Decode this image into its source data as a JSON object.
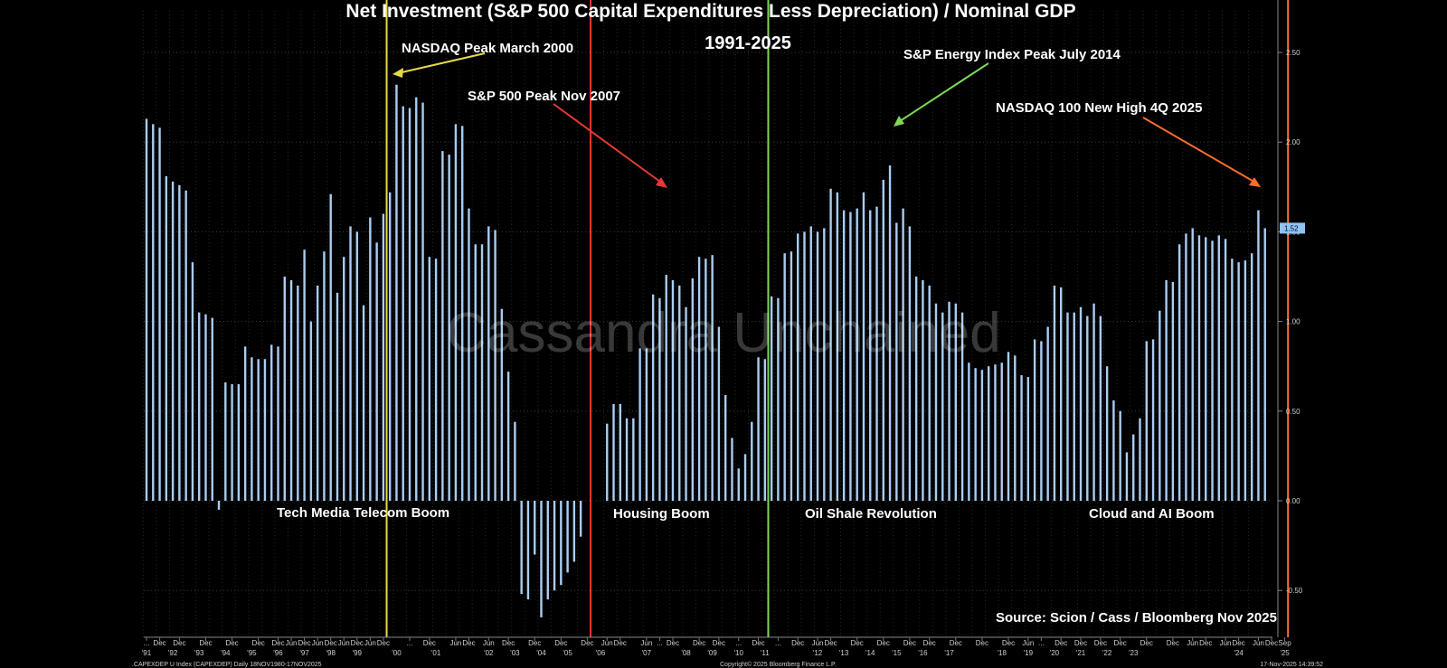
{
  "chart_data": {
    "type": "bar",
    "title": "Net Investment (S&P 500 Capital Expenditures Less Depreciation) / Nominal GDP",
    "subtitle": "1991-2025",
    "ylim": [
      -0.75,
      2.75
    ],
    "yticks": [
      "2.50",
      "2.00",
      "1.50",
      "1.00",
      "0.50",
      "0.00",
      "-0.50"
    ],
    "ytick_values": [
      2.5,
      2.0,
      1.5,
      1.0,
      0.5,
      0.0,
      -0.5
    ],
    "last_value_label": "1.52",
    "last_value": 1.52,
    "grid": true,
    "bar_color": "#a9cdf2",
    "x_start_quarter": "1991 Q1",
    "values": [
      2.13,
      2.1,
      2.08,
      1.81,
      1.78,
      1.76,
      1.73,
      1.33,
      1.05,
      1.04,
      1.02,
      -0.05,
      0.66,
      0.65,
      0.65,
      0.86,
      0.8,
      0.79,
      0.79,
      0.87,
      0.86,
      1.25,
      1.23,
      1.2,
      1.4,
      1.0,
      1.2,
      1.39,
      1.71,
      1.16,
      1.36,
      1.53,
      1.5,
      1.09,
      1.58,
      1.44,
      1.6,
      1.72,
      2.32,
      2.2,
      2.19,
      2.25,
      2.22,
      1.36,
      1.35,
      1.95,
      1.93,
      2.1,
      2.09,
      1.63,
      1.43,
      1.43,
      1.53,
      1.51,
      1.07,
      0.72,
      0.44,
      -0.52,
      -0.55,
      -0.3,
      -0.65,
      -0.55,
      -0.5,
      -0.47,
      -0.4,
      -0.34,
      -0.2,
      0.0,
      0.0,
      0.0,
      0.43,
      0.54,
      0.54,
      0.46,
      0.46,
      0.85,
      0.85,
      1.15,
      1.13,
      1.26,
      1.23,
      1.2,
      1.08,
      1.24,
      1.36,
      1.35,
      1.37,
      0.97,
      0.59,
      0.35,
      0.18,
      0.26,
      0.44,
      0.8,
      0.79,
      1.14,
      1.13,
      1.38,
      1.39,
      1.49,
      1.5,
      1.53,
      1.5,
      1.52,
      1.74,
      1.72,
      1.62,
      1.61,
      1.63,
      1.72,
      1.62,
      1.64,
      1.79,
      1.87,
      1.55,
      1.63,
      1.53,
      1.25,
      1.23,
      1.2,
      1.1,
      1.05,
      1.11,
      1.1,
      1.05,
      0.77,
      0.74,
      0.73,
      0.75,
      0.76,
      0.77,
      0.83,
      0.81,
      0.7,
      0.69,
      0.9,
      0.89,
      0.97,
      1.2,
      1.19,
      1.05,
      1.05,
      1.08,
      1.03,
      1.1,
      1.03,
      0.75,
      0.56,
      0.5,
      0.27,
      0.37,
      0.46,
      0.89,
      0.9,
      1.06,
      1.23,
      1.22,
      1.43,
      1.49,
      1.52,
      1.48,
      1.47,
      1.45,
      1.48,
      1.46,
      1.35,
      1.33,
      1.34,
      1.38,
      1.62,
      1.52
    ],
    "x_tick_labels": [
      {
        "q": 0,
        "text": "..."
      },
      {
        "q": 2,
        "text": "Dec"
      },
      {
        "q": 5,
        "text": "Dec"
      },
      {
        "q": 9,
        "text": "Dec"
      },
      {
        "q": 13,
        "text": "Dec"
      },
      {
        "q": 17,
        "text": "Dec"
      },
      {
        "q": 20,
        "text": "Dec"
      },
      {
        "q": 22,
        "text": "Jun"
      },
      {
        "q": 24,
        "text": "Dec"
      },
      {
        "q": 26,
        "text": "Jun"
      },
      {
        "q": 28,
        "text": "Dec"
      },
      {
        "q": 30,
        "text": "Jun"
      },
      {
        "q": 32,
        "text": "Dec"
      },
      {
        "q": 34,
        "text": "Jun"
      },
      {
        "q": 36,
        "text": "Dec"
      },
      {
        "q": 40,
        "text": "..."
      },
      {
        "q": 43,
        "text": "Dec"
      },
      {
        "q": 47,
        "text": "Jun"
      },
      {
        "q": 49,
        "text": "Dec"
      },
      {
        "q": 52,
        "text": "Jun"
      },
      {
        "q": 55,
        "text": "Dec"
      },
      {
        "q": 59,
        "text": "Dec"
      },
      {
        "q": 63,
        "text": "Dec"
      },
      {
        "q": 67,
        "text": "Dec"
      },
      {
        "q": 70,
        "text": "Jun"
      },
      {
        "q": 72,
        "text": "Dec"
      },
      {
        "q": 76,
        "text": "Jun"
      },
      {
        "q": 78,
        "text": "..."
      },
      {
        "q": 80,
        "text": "Dec"
      },
      {
        "q": 84,
        "text": "Dec"
      },
      {
        "q": 87,
        "text": "Dec"
      },
      {
        "q": 90,
        "text": "..."
      },
      {
        "q": 93,
        "text": "Dec"
      },
      {
        "q": 96,
        "text": "..."
      },
      {
        "q": 99,
        "text": "Dec"
      },
      {
        "q": 102,
        "text": "Jun"
      },
      {
        "q": 104,
        "text": "Dec"
      },
      {
        "q": 108,
        "text": "Dec"
      },
      {
        "q": 112,
        "text": "Dec"
      },
      {
        "q": 116,
        "text": "Dec"
      },
      {
        "q": 119,
        "text": "Dec"
      },
      {
        "q": 123,
        "text": "Dec"
      },
      {
        "q": 127,
        "text": "Dec"
      },
      {
        "q": 131,
        "text": "Dec"
      },
      {
        "q": 134,
        "text": "Jun"
      },
      {
        "q": 136,
        "text": "..."
      },
      {
        "q": 139,
        "text": "Dec"
      },
      {
        "q": 142,
        "text": "Dec"
      },
      {
        "q": 145,
        "text": "Dec"
      },
      {
        "q": 148,
        "text": "Dec"
      },
      {
        "q": 152,
        "text": "Dec"
      },
      {
        "q": 156,
        "text": "Dec"
      },
      {
        "q": 159,
        "text": "Jun"
      },
      {
        "q": 161,
        "text": "Dec"
      },
      {
        "q": 164,
        "text": "Jun"
      },
      {
        "q": 166,
        "text": "Dec"
      },
      {
        "q": 169,
        "text": "Jun"
      },
      {
        "q": 171,
        "text": "Dec"
      },
      {
        "q": 173,
        "text": "Sep"
      }
    ],
    "x_year_labels": [
      {
        "q": 0,
        "text": "'91"
      },
      {
        "q": 4,
        "text": "'92"
      },
      {
        "q": 8,
        "text": "'93"
      },
      {
        "q": 12,
        "text": "'94"
      },
      {
        "q": 16,
        "text": "'95"
      },
      {
        "q": 20,
        "text": "'96"
      },
      {
        "q": 24,
        "text": "'97"
      },
      {
        "q": 28,
        "text": "'98"
      },
      {
        "q": 32,
        "text": "'99"
      },
      {
        "q": 38,
        "text": "'00"
      },
      {
        "q": 44,
        "text": "'01"
      },
      {
        "q": 52,
        "text": "'02"
      },
      {
        "q": 56,
        "text": "'03"
      },
      {
        "q": 60,
        "text": "'04"
      },
      {
        "q": 64,
        "text": "'05"
      },
      {
        "q": 69,
        "text": "'06"
      },
      {
        "q": 76,
        "text": "'07"
      },
      {
        "q": 82,
        "text": "'08"
      },
      {
        "q": 86,
        "text": "'09"
      },
      {
        "q": 90,
        "text": "'10"
      },
      {
        "q": 94,
        "text": "'11"
      },
      {
        "q": 102,
        "text": "'12"
      },
      {
        "q": 106,
        "text": "'13"
      },
      {
        "q": 110,
        "text": "'14"
      },
      {
        "q": 114,
        "text": "'15"
      },
      {
        "q": 118,
        "text": "'16"
      },
      {
        "q": 122,
        "text": "'17"
      },
      {
        "q": 130,
        "text": "'18"
      },
      {
        "q": 134,
        "text": "'19"
      },
      {
        "q": 138,
        "text": "'20"
      },
      {
        "q": 142,
        "text": "'21"
      },
      {
        "q": 146,
        "text": "'22"
      },
      {
        "q": 150,
        "text": "'23"
      },
      {
        "q": 166,
        "text": "'24"
      },
      {
        "q": 173,
        "text": "'25"
      }
    ],
    "vlines": [
      {
        "q": 36.5,
        "color": "#e8d84a",
        "label": "NASDAQ Peak March 2000"
      },
      {
        "q": 67.5,
        "color": "#e53935",
        "label": "S&P 500 Peak Nov 2007"
      },
      {
        "q": 94.5,
        "color": "#7ed957",
        "label": "S&P Energy Index Peak July 2014"
      },
      {
        "q": 173.5,
        "color": "#ff6d2e",
        "label": "NASDAQ 100 New High 4Q 2025"
      }
    ],
    "period_labels": [
      "Tech Media Telecom Boom",
      "Housing Boom",
      "Oil Shale Revolution",
      "Cloud and AI Boom"
    ],
    "source": "Source: Scion / Cass / Bloomberg Nov 2025",
    "watermark": "Cassandra Unchained"
  },
  "footer": {
    "left": ".CAPEXDEP U Index (CAPEXDEP) Daily 18NOV1980-17NOV2025",
    "center": "Copyright© 2025 Bloomberg Finance L.P.",
    "right": "17-Nov-2025 14:39:52"
  }
}
